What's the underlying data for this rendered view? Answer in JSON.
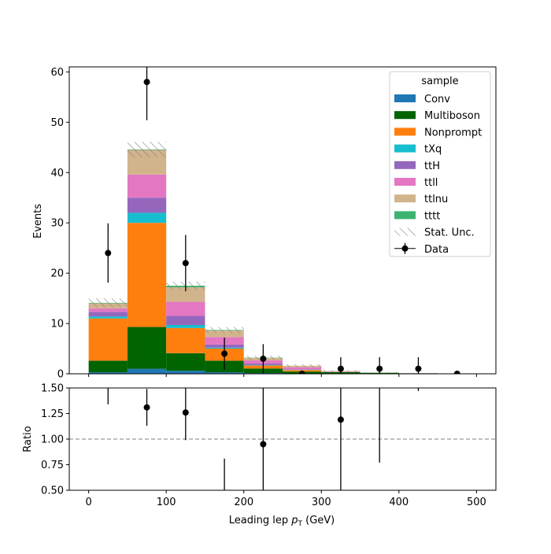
{
  "chart_data": {
    "type": "bar",
    "subtype": "stacked-histogram-with-ratio",
    "xlabel": "Leading lep p_T (GeV)",
    "xlabel_parts": {
      "main": "Leading lep ",
      "italic": "p",
      "sub": "T",
      "unit": " (GeV)"
    },
    "ylabel": "Events",
    "ratio_ylabel": "Ratio",
    "xlim": [
      -25,
      525
    ],
    "ylim": [
      0,
      61
    ],
    "ratio_ylim": [
      0.5,
      1.5
    ],
    "xticks": [
      0,
      100,
      200,
      300,
      400,
      500
    ],
    "yticks": [
      0,
      10,
      20,
      30,
      40,
      50,
      60
    ],
    "ratio_yticks": [
      "0.50",
      "0.75",
      "1.00",
      "1.25",
      "1.50"
    ],
    "bin_edges": [
      0,
      50,
      100,
      150,
      200,
      250,
      300,
      350,
      400,
      450,
      500
    ],
    "legend": {
      "title": "sample",
      "placement": "top-right"
    },
    "series": [
      {
        "name": "Conv",
        "color": "#1f77b4",
        "values": [
          0.3,
          1.0,
          0.6,
          0.3,
          0.15,
          0.05,
          0.05,
          0.05,
          0.05,
          0.02
        ]
      },
      {
        "name": "Multiboson",
        "color": "#006400",
        "values": [
          2.3,
          8.3,
          3.5,
          2.3,
          0.9,
          0.4,
          0.3,
          0.15,
          0.05,
          0.02
        ]
      },
      {
        "name": "Nonprompt",
        "color": "#ff7f0e",
        "values": [
          8.4,
          20.7,
          5.0,
          2.4,
          0.6,
          0.3,
          0.0,
          0.0,
          0.0,
          0.0
        ]
      },
      {
        "name": "tXq",
        "color": "#17becf",
        "values": [
          0.4,
          2.0,
          0.6,
          0.2,
          0.1,
          0.05,
          0.0,
          0.0,
          0.0,
          0.0
        ]
      },
      {
        "name": "ttH",
        "color": "#9467bd",
        "values": [
          0.9,
          3.0,
          1.8,
          0.6,
          0.3,
          0.1,
          0.0,
          0.0,
          0.0,
          0.0
        ]
      },
      {
        "name": "ttll",
        "color": "#e377c2",
        "values": [
          0.7,
          4.6,
          2.8,
          1.5,
          0.6,
          0.4,
          0.1,
          0.0,
          0.0,
          0.0
        ]
      },
      {
        "name": "ttlnu",
        "color": "#d2b48c",
        "values": [
          1.0,
          4.9,
          2.9,
          1.3,
          0.5,
          0.3,
          0.1,
          0.0,
          0.0,
          0.0
        ]
      },
      {
        "name": "tttt",
        "color": "#3cb371",
        "values": [
          0.1,
          0.1,
          0.3,
          0.1,
          0.05,
          0.0,
          0.0,
          0.0,
          0.0,
          0.0
        ]
      }
    ],
    "stat_unc": {
      "name": "Stat. Unc.",
      "errors": [
        0.9,
        1.5,
        0.8,
        0.6,
        0.4,
        0.3,
        0.2,
        0.1,
        0.05,
        0.03
      ]
    },
    "data": {
      "name": "Data",
      "x": [
        25,
        75,
        125,
        175,
        225,
        275,
        325,
        375,
        425,
        475
      ],
      "y": [
        24,
        58,
        22,
        4,
        3,
        0,
        1,
        1,
        1,
        0
      ],
      "err": [
        5.9,
        7.6,
        5.6,
        3.2,
        2.9,
        0,
        2.3,
        2.3,
        2.3,
        0
      ]
    },
    "ratio": {
      "x": [
        25,
        75,
        125,
        175,
        225,
        275,
        325,
        375,
        425,
        475
      ],
      "y": [
        1.55,
        1.31,
        1.26,
        0.45,
        0.95,
        null,
        1.19,
        1.7,
        1.9,
        null
      ],
      "err_low": [
        0.21,
        0.18,
        0.27,
        0.36,
        0.9,
        null,
        0.9,
        0.93,
        0.43,
        null
      ],
      "err_high": [
        0.21,
        0.18,
        0.27,
        0.36,
        0.9,
        null,
        0.9,
        0.93,
        0.43,
        null
      ],
      "show_marker": [
        false,
        true,
        true,
        false,
        true,
        false,
        true,
        false,
        false,
        false
      ],
      "reference_line": 1.0
    }
  }
}
